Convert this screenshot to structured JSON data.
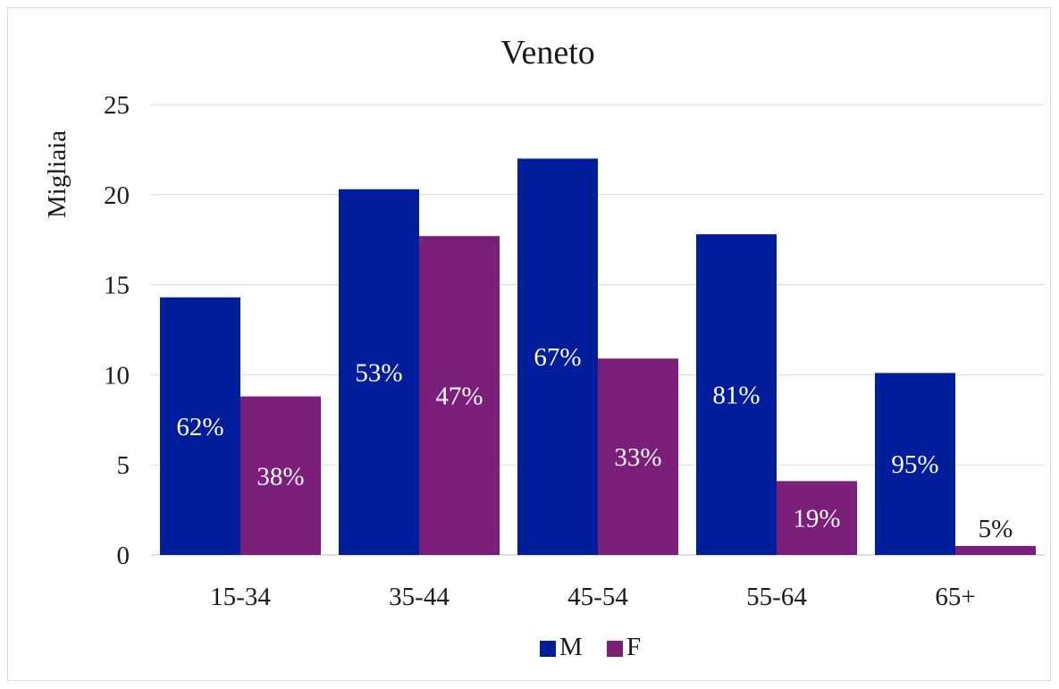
{
  "chart_data": {
    "type": "bar",
    "title": "Veneto",
    "xlabel": "",
    "ylabel": "Migliaia",
    "categories": [
      "15-34",
      "35-44",
      "45-54",
      "55-64",
      "65+"
    ],
    "ylim": [
      0,
      25
    ],
    "yticks": [
      0,
      5,
      10,
      15,
      20,
      25
    ],
    "grid": true,
    "legend_position": "bottom",
    "series": [
      {
        "name": "M",
        "color": "#001e9c",
        "values": [
          14.3,
          20.3,
          22.0,
          17.8,
          10.1
        ],
        "labels": [
          "62%",
          "53%",
          "67%",
          "81%",
          "95%"
        ]
      },
      {
        "name": "F",
        "color": "#7b1f7a",
        "values": [
          8.8,
          17.7,
          10.9,
          4.1,
          0.5
        ],
        "labels": [
          "38%",
          "47%",
          "33%",
          "19%",
          "5%"
        ]
      }
    ]
  }
}
